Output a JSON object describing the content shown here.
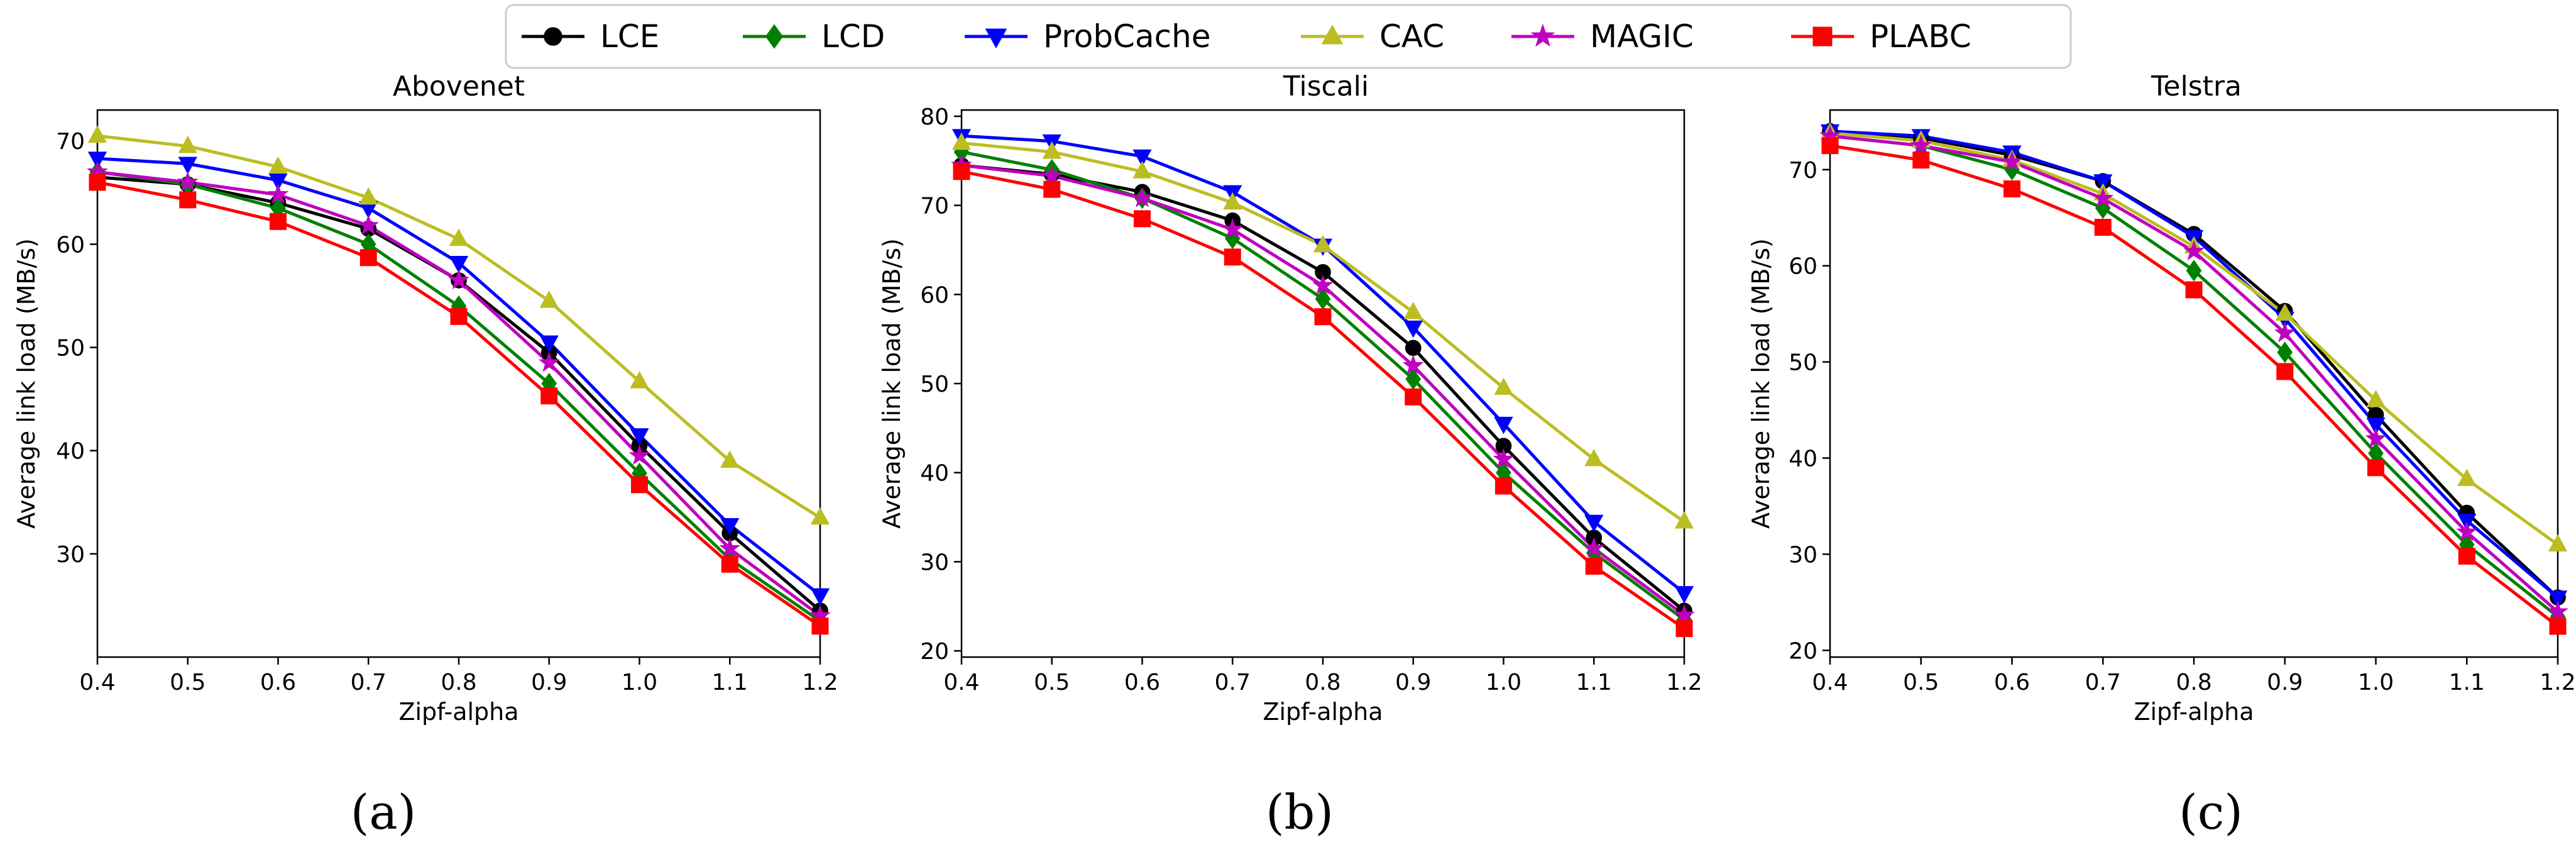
{
  "legend": {
    "items": [
      {
        "label": "LCE",
        "color": "#000000",
        "marker": "circle"
      },
      {
        "label": "LCD",
        "color": "#008000",
        "marker": "diamond"
      },
      {
        "label": "ProbCache",
        "color": "#0000ff",
        "marker": "triangle-down"
      },
      {
        "label": "CAC",
        "color": "#bcbd22",
        "marker": "triangle-up"
      },
      {
        "label": "MAGIC",
        "color": "#c000c0",
        "marker": "star"
      },
      {
        "label": "PLABC",
        "color": "#ff0000",
        "marker": "square"
      }
    ]
  },
  "chart_data": [
    {
      "type": "line",
      "title": "Abovenet",
      "panel_label": "(a)",
      "xlabel": "Zipf-alpha",
      "ylabel": "Average link load (MB/s)",
      "xlim": [
        0.4,
        1.2
      ],
      "ylim": [
        20,
        73
      ],
      "xticks": [
        0.4,
        0.5,
        0.6,
        0.7,
        0.8,
        0.9,
        1.0,
        1.1,
        1.2
      ],
      "xtick_labels": [
        "0.4",
        "0.5",
        "0.6",
        "0.7",
        "0.8",
        "0.9",
        "1.0",
        "1.1",
        "1.2"
      ],
      "yticks": [
        30,
        40,
        50,
        60,
        70
      ],
      "ytick_labels": [
        "30",
        "40",
        "50",
        "60",
        "70"
      ],
      "x": [
        0.4,
        0.5,
        0.6,
        0.7,
        0.8,
        0.9,
        1.0,
        1.1,
        1.2
      ],
      "series": [
        {
          "name": "LCE",
          "values": [
            66.5,
            65.8,
            64.0,
            61.5,
            56.5,
            49.5,
            40.5,
            32.0,
            24.5
          ]
        },
        {
          "name": "LCD",
          "values": [
            67.0,
            65.8,
            63.5,
            60.0,
            54.0,
            46.5,
            37.8,
            29.5,
            23.5
          ]
        },
        {
          "name": "ProbCache",
          "values": [
            68.3,
            67.8,
            66.2,
            63.5,
            58.2,
            50.5,
            41.5,
            32.8,
            26.0
          ]
        },
        {
          "name": "CAC",
          "values": [
            70.5,
            69.5,
            67.5,
            64.5,
            60.5,
            54.5,
            46.7,
            39.0,
            33.5
          ]
        },
        {
          "name": "MAGIC",
          "values": [
            67.0,
            66.0,
            64.8,
            61.8,
            56.5,
            48.5,
            39.5,
            30.5,
            24.0
          ]
        },
        {
          "name": "PLABC",
          "values": [
            66.0,
            64.3,
            62.2,
            58.7,
            53.0,
            45.3,
            36.7,
            29.0,
            23.0
          ]
        }
      ]
    },
    {
      "type": "line",
      "title": "Tiscali",
      "panel_label": "(b)",
      "xlabel": "Zipf-alpha",
      "ylabel": "Average link load (MB/s)",
      "xlim": [
        0.4,
        1.2
      ],
      "ylim": [
        19.3,
        80.7
      ],
      "xticks": [
        0.4,
        0.5,
        0.6,
        0.7,
        0.8,
        0.9,
        1.0,
        1.1,
        1.2
      ],
      "xtick_labels": [
        "0.4",
        "0.5",
        "0.6",
        "0.7",
        "0.8",
        "0.9",
        "1.0",
        "1.1",
        "1.2"
      ],
      "yticks": [
        20,
        30,
        40,
        50,
        60,
        70,
        80
      ],
      "ytick_labels": [
        "20",
        "30",
        "40",
        "50",
        "60",
        "70",
        "80"
      ],
      "x": [
        0.4,
        0.5,
        0.6,
        0.7,
        0.8,
        0.9,
        1.0,
        1.1,
        1.2
      ],
      "series": [
        {
          "name": "LCE",
          "values": [
            74.5,
            73.5,
            71.5,
            68.3,
            62.5,
            54.0,
            43.0,
            32.7,
            24.5
          ]
        },
        {
          "name": "LCD",
          "values": [
            76.0,
            74.0,
            70.8,
            66.3,
            59.5,
            50.5,
            40.0,
            31.0,
            23.5
          ]
        },
        {
          "name": "ProbCache",
          "values": [
            77.8,
            77.2,
            75.5,
            71.5,
            65.5,
            56.3,
            45.5,
            34.5,
            26.5
          ]
        },
        {
          "name": "CAC",
          "values": [
            77.0,
            76.0,
            73.8,
            70.3,
            65.5,
            58.0,
            49.5,
            41.5,
            34.5
          ]
        },
        {
          "name": "MAGIC",
          "values": [
            74.5,
            73.3,
            70.8,
            67.3,
            61.0,
            52.0,
            41.5,
            31.5,
            24.0
          ]
        },
        {
          "name": "PLABC",
          "values": [
            73.8,
            71.8,
            68.5,
            64.2,
            57.5,
            48.5,
            38.5,
            29.5,
            22.5
          ]
        }
      ]
    },
    {
      "type": "line",
      "title": "Telstra",
      "panel_label": "(c)",
      "xlabel": "Zipf-alpha",
      "ylabel": "Average link load (MB/s)",
      "xlim": [
        0.4,
        1.2
      ],
      "ylim": [
        19.3,
        76.2
      ],
      "xticks": [
        0.4,
        0.5,
        0.6,
        0.7,
        0.8,
        0.9,
        1.0,
        1.1,
        1.2
      ],
      "xtick_labels": [
        "0.4",
        "0.5",
        "0.6",
        "0.7",
        "0.8",
        "0.9",
        "1.0",
        "1.1",
        "1.2"
      ],
      "yticks": [
        20,
        30,
        40,
        50,
        60,
        70
      ],
      "ytick_labels": [
        "20",
        "30",
        "40",
        "50",
        "60",
        "70"
      ],
      "x": [
        0.4,
        0.5,
        0.6,
        0.7,
        0.8,
        0.9,
        1.0,
        1.1,
        1.2
      ],
      "series": [
        {
          "name": "LCE",
          "values": [
            74.0,
            73.3,
            71.5,
            68.8,
            63.3,
            55.3,
            44.5,
            34.3,
            25.5
          ]
        },
        {
          "name": "LCD",
          "values": [
            73.5,
            72.5,
            70.0,
            66.0,
            59.5,
            51.0,
            40.5,
            31.0,
            23.5
          ]
        },
        {
          "name": "ProbCache",
          "values": [
            74.0,
            73.5,
            71.8,
            68.8,
            63.0,
            54.5,
            43.5,
            33.5,
            25.5
          ]
        },
        {
          "name": "CAC",
          "values": [
            73.8,
            73.0,
            71.0,
            67.5,
            62.0,
            55.0,
            46.0,
            37.8,
            31.0
          ]
        },
        {
          "name": "MAGIC",
          "values": [
            73.5,
            72.5,
            70.8,
            67.0,
            61.5,
            53.0,
            42.0,
            32.3,
            24.0
          ]
        },
        {
          "name": "PLABC",
          "values": [
            72.5,
            71.0,
            68.0,
            64.0,
            57.5,
            49.0,
            39.0,
            29.8,
            22.5
          ]
        }
      ]
    }
  ]
}
